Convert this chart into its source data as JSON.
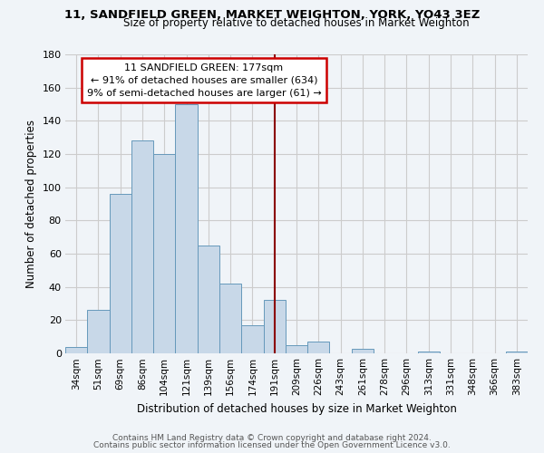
{
  "title1": "11, SANDFIELD GREEN, MARKET WEIGHTON, YORK, YO43 3EZ",
  "title2": "Size of property relative to detached houses in Market Weighton",
  "xlabel": "Distribution of detached houses by size in Market Weighton",
  "ylabel": "Number of detached properties",
  "bar_labels": [
    "34sqm",
    "51sqm",
    "69sqm",
    "86sqm",
    "104sqm",
    "121sqm",
    "139sqm",
    "156sqm",
    "174sqm",
    "191sqm",
    "209sqm",
    "226sqm",
    "243sqm",
    "261sqm",
    "278sqm",
    "296sqm",
    "313sqm",
    "331sqm",
    "348sqm",
    "366sqm",
    "383sqm"
  ],
  "bar_values": [
    4,
    26,
    96,
    128,
    120,
    150,
    65,
    42,
    17,
    32,
    5,
    7,
    0,
    3,
    0,
    0,
    1,
    0,
    0,
    0,
    1
  ],
  "bar_color": "#c8d8e8",
  "bar_edge_color": "#6699bb",
  "grid_color": "#cccccc",
  "bg_color": "#f0f4f8",
  "vline_x": 9.0,
  "vline_color": "#8b0000",
  "annotation_text": "11 SANDFIELD GREEN: 177sqm\n← 91% of detached houses are smaller (634)\n9% of semi-detached houses are larger (61) →",
  "annotation_box_color": "#ffffff",
  "annotation_box_edge": "#cc0000",
  "ylim": [
    0,
    180
  ],
  "yticks": [
    0,
    20,
    40,
    60,
    80,
    100,
    120,
    140,
    160,
    180
  ],
  "footer1": "Contains HM Land Registry data © Crown copyright and database right 2024.",
  "footer2": "Contains public sector information licensed under the Open Government Licence v3.0."
}
